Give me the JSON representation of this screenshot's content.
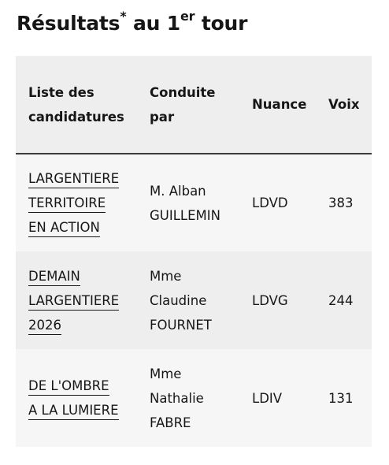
{
  "heading": {
    "text": "Résultats",
    "asterisk": "*",
    "middle": " au 1",
    "ordinal": "er",
    "end": " tour"
  },
  "table": {
    "headers": {
      "list": [
        "Liste des",
        "candidatures"
      ],
      "lead": [
        "Conduite",
        "par"
      ],
      "nuance": "Nuance",
      "votes": "Voix"
    },
    "rows": [
      {
        "list_lines": [
          "LARGENTIERE",
          "TERRITOIRE",
          "EN ACTION"
        ],
        "lead_lines": [
          "M. Alban",
          "GUILLEMIN"
        ],
        "nuance": "LDVD",
        "votes": "383"
      },
      {
        "list_lines": [
          "DEMAIN",
          "LARGENTIERE",
          "2026"
        ],
        "lead_lines": [
          "Mme",
          "Claudine",
          "FOURNET"
        ],
        "nuance": "LDVG",
        "votes": "244"
      },
      {
        "list_lines": [
          "DE L'OMBRE",
          "A LA LUMIERE"
        ],
        "lead_lines": [
          "Mme",
          "Nathalie",
          "FABRE"
        ],
        "nuance": "LDIV",
        "votes": "131"
      }
    ]
  }
}
